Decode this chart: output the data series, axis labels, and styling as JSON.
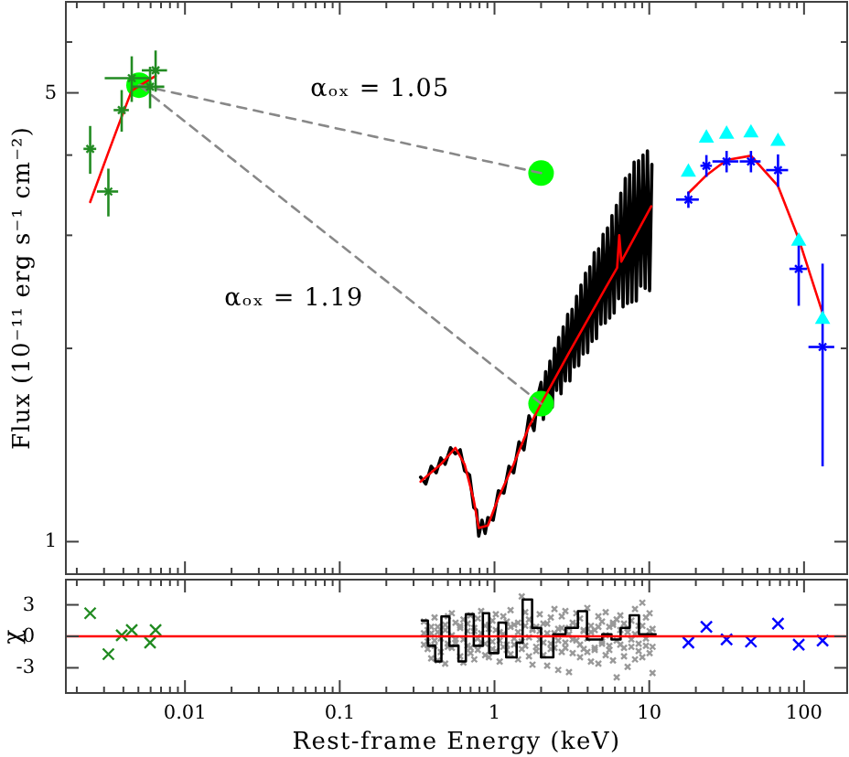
{
  "chart_data": [
    {
      "type": "scatter",
      "ylabel": "Flux (10⁻¹¹ erg s⁻¹ cm⁻²)",
      "log": "xy",
      "xlim": [
        0.0017,
        190
      ],
      "ylim": [
        0.89,
        6.93
      ],
      "tick_labels": "y",
      "xticks": [
        {
          "value": 0.002,
          "label": null
        },
        {
          "value": 0.003,
          "label": null
        },
        {
          "value": 0.004,
          "label": null
        },
        {
          "value": 0.005,
          "label": null
        },
        {
          "value": 0.006,
          "label": null
        },
        {
          "value": 0.007,
          "label": null
        },
        {
          "value": 0.008,
          "label": null
        },
        {
          "value": 0.009,
          "label": null
        },
        0.01,
        {
          "value": 0.02,
          "label": null
        },
        {
          "value": 0.03,
          "label": null
        },
        {
          "value": 0.04,
          "label": null
        },
        {
          "value": 0.05,
          "label": null
        },
        {
          "value": 0.06,
          "label": null
        },
        {
          "value": 0.07,
          "label": null
        },
        {
          "value": 0.08,
          "label": null
        },
        {
          "value": 0.09,
          "label": null
        },
        0.1,
        {
          "value": 0.2,
          "label": null
        },
        {
          "value": 0.3,
          "label": null
        },
        {
          "value": 0.4,
          "label": null
        },
        {
          "value": 0.5,
          "label": null
        },
        {
          "value": 0.6,
          "label": null
        },
        {
          "value": 0.7,
          "label": null
        },
        {
          "value": 0.8,
          "label": null
        },
        {
          "value": 0.9,
          "label": null
        },
        1,
        {
          "value": 2,
          "label": null
        },
        {
          "value": 3,
          "label": null
        },
        {
          "value": 4,
          "label": null
        },
        {
          "value": 5,
          "label": null
        },
        {
          "value": 6,
          "label": null
        },
        {
          "value": 7,
          "label": null
        },
        {
          "value": 8,
          "label": null
        },
        {
          "value": 9,
          "label": null
        },
        10,
        {
          "value": 20,
          "label": null
        },
        {
          "value": 30,
          "label": null
        },
        {
          "value": 40,
          "label": null
        },
        {
          "value": 50,
          "label": null
        },
        {
          "value": 60,
          "label": null
        },
        {
          "value": 70,
          "label": null
        },
        {
          "value": 80,
          "label": null
        },
        {
          "value": 90,
          "label": null
        },
        100
      ],
      "yticks": [
        1,
        {
          "value": 2,
          "label": null
        },
        {
          "value": 3,
          "label": null
        },
        {
          "value": 4,
          "label": null
        },
        5,
        {
          "value": 6,
          "label": null
        }
      ],
      "annotations": [
        "αₒₓ = 1.05",
        "αₒₓ = 1.19"
      ],
      "series": [
        {
          "type": "line",
          "color": "#000000",
          "x": [
            0.333,
            0.36,
            0.39,
            0.42,
            0.45,
            0.48,
            0.52,
            0.559,
            0.6,
            0.641,
            0.69,
            0.735,
            0.765,
            0.791,
            0.83,
            0.87,
            0.906,
            0.98,
            1.06,
            1.15,
            1.24,
            1.33,
            1.44,
            1.55,
            1.67,
            1.8,
            1.9,
            2.0,
            2.07,
            2.14,
            2.21,
            2.28,
            2.36,
            2.44,
            2.52,
            2.6,
            2.69,
            2.78,
            2.87,
            2.97,
            3.07,
            3.17,
            3.28,
            3.39,
            3.5,
            3.62,
            3.74,
            3.87,
            4.0,
            4.13,
            4.27,
            4.41,
            4.56,
            4.71,
            4.87,
            5.03,
            5.2,
            5.37,
            5.55,
            5.74,
            5.93,
            6.13,
            6.34,
            6.55,
            6.77,
            7.0,
            7.23,
            7.47,
            7.72,
            7.98,
            8.25,
            8.53,
            8.81,
            9.11,
            9.41,
            9.73,
            10.05,
            10.4
          ],
          "values": [
            1.26,
            1.23,
            1.31,
            1.28,
            1.35,
            1.32,
            1.4,
            1.37,
            1.39,
            1.29,
            1.27,
            1.13,
            1.12,
            1.02,
            1.08,
            1.03,
            1.09,
            1.08,
            1.2,
            1.19,
            1.31,
            1.28,
            1.43,
            1.39,
            1.57,
            1.49,
            1.68,
            1.77,
            1.55,
            1.84,
            1.61,
            1.91,
            1.62,
            2.0,
            1.72,
            2.08,
            1.7,
            2.16,
            1.78,
            2.26,
            1.78,
            2.3,
            1.87,
            2.41,
            1.88,
            2.51,
            1.96,
            2.62,
            1.97,
            2.68,
            2.05,
            2.82,
            2.07,
            2.86,
            2.18,
            3.01,
            2.19,
            3.08,
            2.23,
            3.22,
            2.27,
            3.34,
            2.39,
            3.49,
            2.32,
            3.68,
            2.35,
            3.73,
            2.36,
            3.9,
            2.37,
            3.92,
            2.5,
            4.0,
            2.48,
            4.06,
            2.46,
            3.87
          ]
        },
        {
          "color": "#00ff00",
          "marker": "circle",
          "x": [
            0.00505,
            2,
            2
          ],
          "values": [
            5.14,
            3.75,
            1.64
          ]
        },
        {
          "type": "line",
          "color": "#ff0000",
          "x": [
            0.00244,
            0.0032,
            0.0039,
            0.00453,
            0.00595,
            0.00646
          ],
          "values": [
            3.38,
            4.04,
            4.59,
            5.04,
            5.25,
            5.31
          ]
        },
        {
          "type": "line",
          "color": "#ff0000",
          "x": [
            0.333,
            0.45,
            0.559,
            0.641,
            0.735,
            0.791,
            0.906,
            1.06,
            1.33,
            1.67,
            2.0,
            3.0,
            5.2,
            6.2,
            6.4,
            6.6,
            10.3
          ],
          "values": [
            1.24,
            1.32,
            1.4,
            1.32,
            1.16,
            1.05,
            1.06,
            1.17,
            1.32,
            1.51,
            1.64,
            1.96,
            2.48,
            2.67,
            3.0,
            2.73,
            3.33
          ]
        },
        {
          "type": "line",
          "color": "#ff0000",
          "x": [
            17.9,
            23.4,
            31.6,
            45.4,
            67.9,
            92.4,
            131.8
          ],
          "values": [
            3.49,
            3.72,
            3.93,
            3.99,
            3.58,
            2.96,
            2.27
          ]
        },
        {
          "type": "line",
          "color": "#888888",
          "line_style": "dashed",
          "x": [
            0.00505,
            2
          ],
          "values": [
            5.14,
            3.75
          ]
        },
        {
          "type": "line",
          "color": "#888888",
          "line_style": "dashed",
          "x": [
            0.00505,
            2
          ],
          "values": [
            5.14,
            1.64
          ]
        },
        {
          "color": "#228b22",
          "marker": "cross",
          "x": [
            0.00244,
            0.0032,
            0.0039,
            0.00453,
            0.00595,
            0.00646
          ],
          "values": [
            4.09,
            3.51,
            4.7,
            5.27,
            5.11,
            5.42
          ],
          "errors": [
            0.35,
            0.3,
            0.35,
            0.43,
            0.38,
            0.4
          ],
          "xerrors": [
            0.00023,
            0.0005,
            0.00044,
            0.0015,
            0.0014,
            0.0012
          ]
        },
        {
          "color": "#0000ff",
          "marker": "cross",
          "x": [
            17.9,
            23.4,
            31.6,
            45.4,
            67.9,
            92.4,
            131.8
          ],
          "values": [
            3.41,
            3.85,
            3.91,
            3.91,
            3.79,
            2.66,
            2.01
          ],
          "errors": [
            0.1,
            0.15,
            0.15,
            0.15,
            0.22,
            0.33,
            0.7
          ],
          "xerrors": [
            3,
            2,
            6,
            7,
            11,
            12,
            25
          ]
        },
        {
          "color": "#00ffff",
          "marker": "triangle",
          "x": [
            17.9,
            23.4,
            31.6,
            45.4,
            67.9,
            92.4,
            131.8
          ],
          "values": [
            3.78,
            4.27,
            4.33,
            4.35,
            4.22,
            2.95,
            2.23
          ]
        }
      ]
    },
    {
      "type": "scatter",
      "xlabel": "Rest-frame Energy (keV)",
      "ylabel": "χ",
      "log": "x",
      "xlim": [
        0.0017,
        190
      ],
      "ylim": [
        -5.4,
        5.4
      ],
      "xticks": [
        {
          "value": 0.002,
          "label": null
        },
        {
          "value": 0.003,
          "label": null
        },
        {
          "value": 0.004,
          "label": null
        },
        {
          "value": 0.005,
          "label": null
        },
        {
          "value": 0.006,
          "label": null
        },
        {
          "value": 0.007,
          "label": null
        },
        {
          "value": 0.008,
          "label": null
        },
        {
          "value": 0.009,
          "label": null
        },
        0.01,
        {
          "value": 0.02,
          "label": null
        },
        {
          "value": 0.03,
          "label": null
        },
        {
          "value": 0.04,
          "label": null
        },
        {
          "value": 0.05,
          "label": null
        },
        {
          "value": 0.06,
          "label": null
        },
        {
          "value": 0.07,
          "label": null
        },
        {
          "value": 0.08,
          "label": null
        },
        {
          "value": 0.09,
          "label": null
        },
        0.1,
        {
          "value": 0.2,
          "label": null
        },
        {
          "value": 0.3,
          "label": null
        },
        {
          "value": 0.4,
          "label": null
        },
        {
          "value": 0.5,
          "label": null
        },
        {
          "value": 0.6,
          "label": null
        },
        {
          "value": 0.7,
          "label": null
        },
        {
          "value": 0.8,
          "label": null
        },
        {
          "value": 0.9,
          "label": null
        },
        1,
        {
          "value": 2,
          "label": null
        },
        {
          "value": 3,
          "label": null
        },
        {
          "value": 4,
          "label": null
        },
        {
          "value": 5,
          "label": null
        },
        {
          "value": 6,
          "label": null
        },
        {
          "value": 7,
          "label": null
        },
        {
          "value": 8,
          "label": null
        },
        {
          "value": 9,
          "label": null
        },
        10,
        {
          "value": 20,
          "label": null
        },
        {
          "value": 30,
          "label": null
        },
        {
          "value": 40,
          "label": null
        },
        {
          "value": 50,
          "label": null
        },
        {
          "value": 60,
          "label": null
        },
        {
          "value": 70,
          "label": null
        },
        {
          "value": 80,
          "label": null
        },
        {
          "value": 90,
          "label": null
        },
        100
      ],
      "yticks": [
        -3,
        0,
        3
      ],
      "ref_lines": [
        {
          "axis": "y",
          "value": 0,
          "color": "#ff0000"
        }
      ],
      "series": [
        {
          "color": "#999999",
          "marker": "cross",
          "x": [
            0.35,
            0.35,
            0.37,
            0.37,
            0.39,
            0.39,
            0.41,
            0.41,
            0.43,
            0.43,
            0.45,
            0.45,
            0.48,
            0.48,
            0.5,
            0.5,
            0.53,
            0.53,
            0.56,
            0.56,
            0.6,
            0.6,
            0.63,
            0.63,
            0.67,
            0.67,
            0.7,
            0.7,
            0.74,
            0.74,
            0.78,
            0.78,
            0.82,
            0.82,
            0.87,
            0.87,
            0.92,
            0.92,
            0.97,
            0.97,
            1.02,
            1.02,
            1.08,
            1.08,
            1.14,
            1.14,
            1.2,
            1.2,
            1.27,
            1.27,
            1.34,
            1.34,
            1.42,
            1.42,
            1.5,
            1.5,
            1.58,
            1.58,
            1.67,
            1.67,
            1.76,
            1.76,
            1.86,
            1.86,
            1.96,
            1.96,
            2.07,
            2.07,
            2.19,
            2.19,
            2.31,
            2.31,
            2.44,
            2.44,
            2.58,
            2.58,
            2.72,
            2.72,
            2.87,
            2.87,
            3.03,
            3.03,
            3.2,
            3.2,
            3.38,
            3.38,
            3.57,
            3.57,
            3.77,
            3.77,
            3.98,
            3.98,
            4.2,
            4.2,
            4.44,
            4.44,
            4.69,
            4.69,
            4.95,
            4.95,
            5.23,
            5.23,
            5.52,
            5.52,
            5.83,
            5.83,
            6.16,
            6.16,
            6.5,
            6.5,
            6.87,
            6.87,
            7.25,
            7.25,
            7.66,
            7.66,
            8.09,
            8.09,
            8.54,
            8.54,
            9.02,
            9.02,
            9.52,
            9.52,
            10.05,
            10.05,
            10.5,
            10.5,
            0.35,
            0.37,
            0.39,
            0.41,
            0.43,
            0.45,
            0.48,
            0.5,
            0.53,
            0.56,
            0.6,
            0.63,
            0.67,
            0.7,
            0.74,
            0.78,
            0.82,
            0.87,
            0.92,
            0.97,
            1.02,
            1.08,
            1.14,
            1.2,
            1.27,
            1.34,
            1.42,
            1.5,
            1.58,
            1.67,
            1.76,
            1.86,
            1.96,
            2.07,
            2.19,
            2.31,
            2.44,
            2.58,
            2.72,
            2.87,
            3.03,
            3.2,
            3.38,
            3.57,
            3.77,
            3.98,
            4.2,
            4.44,
            4.69,
            4.95,
            5.23,
            5.52,
            5.83,
            6.16,
            6.5,
            6.87,
            7.25,
            7.66,
            8.09,
            8.54,
            9.02,
            9.52,
            10.05,
            10.5
          ],
          "values": [
            1.4,
            -0.8,
            -1.2,
            0.6,
            0.3,
            -2.1,
            1.8,
            -0.4,
            -2.3,
            0.9,
            0.2,
            -1.5,
            1.1,
            -2.6,
            -0.7,
            1.9,
            2.2,
            -1.1,
            -0.3,
            1.3,
            0.8,
            -1.9,
            -2.5,
            1.6,
            1.2,
            -0.9,
            -1.6,
            2.0,
            0.5,
            -2.2,
            1.7,
            -1.3,
            -0.6,
            2.4,
            1.0,
            -1.8,
            -2.0,
            0.7,
            1.5,
            -0.5,
            -1.4,
            2.1,
            0.4,
            -2.4,
            1.9,
            -1.0,
            -0.8,
            1.4,
            2.5,
            -1.7,
            -0.2,
            1.1,
            1.3,
            -2.2,
            3.8,
            -1.2,
            -0.9,
            2.3,
            1.6,
            -1.9,
            -2.7,
            0.6,
            0.9,
            -1.4,
            2.1,
            -0.3,
            -1.8,
            1.2,
            0.3,
            -2.8,
            1.8,
            -0.7,
            -1.1,
            2.6,
            0.7,
            -3.2,
            -1.5,
            1.9,
            2.4,
            -0.6,
            -3.4,
            0.8,
            1.3,
            -1.6,
            -0.4,
            2.2,
            1.7,
            -2.0,
            -1.2,
            0.5,
            2.7,
            -1.5,
            -2.4,
            1.0,
            0.6,
            -1.1,
            1.9,
            -2.6,
            -0.7,
            1.4,
            2.3,
            -1.8,
            -1.3,
            0.9,
            1.1,
            -2.3,
            -3.9,
            1.6,
            2.0,
            -0.8,
            -1.9,
            1.2,
            0.4,
            -2.9,
            1.5,
            -1.0,
            -2.2,
            2.6,
            1.0,
            -1.4,
            3.2,
            -2.0,
            -0.9,
            1.8,
            2.2,
            -1.6,
            -3.5,
            0.7,
            0.3,
            -0.5,
            0.9,
            -0.9,
            0.4,
            -0.2,
            0.6,
            -1.0,
            0.1,
            -0.6,
            1.0,
            -0.3,
            0.5,
            -1.1,
            0.8,
            -0.2,
            0.3,
            -0.7,
            1.1,
            -1.2,
            0.6,
            -0.4,
            0.2,
            -1.3,
            0.9,
            -0.8,
            0.4,
            -0.5,
            1.0,
            -0.1,
            0.7,
            -1.0,
            0.5,
            -0.6,
            1.2,
            -1.2,
            0.3,
            -0.4,
            0.8,
            -1.1,
            0.2,
            -0.3,
            1.1,
            -0.8,
            0.6,
            -0.2,
            0.4,
            -1.3,
            0.9,
            -0.5,
            0.1,
            -0.9,
            1.3,
            -0.4,
            0.6,
            -1.1,
            0.8,
            -0.3,
            0.2,
            -0.7,
            1.0,
            -0.2,
            0.5,
            -1.0
          ]
        },
        {
          "type": "step",
          "color": "#000000",
          "x": [
            0.339,
            0.371,
            0.414,
            0.454,
            0.511,
            0.585,
            0.653,
            0.735,
            0.841,
            0.924,
            1.06,
            1.19,
            1.39,
            1.52,
            1.75,
            2.0,
            2.4,
            2.88,
            3.46,
            3.96,
            4.97,
            5.7,
            6.53,
            7.48,
            8.58,
            9.84,
            11.0
          ],
          "values": [
            1.5,
            -0.9,
            -2.4,
            1.9,
            -0.9,
            -2.4,
            2.1,
            -0.9,
            2.2,
            -1.6,
            1.3,
            -2.0,
            -0.6,
            3.5,
            0.8,
            -2.0,
            0.2,
            0.8,
            2.4,
            -0.3,
            0.2,
            -0.3,
            0.8,
            2.0,
            0.2,
            0.2,
            0.2
          ]
        },
        {
          "color": "#228b22",
          "marker": "cross",
          "x": [
            0.00244,
            0.0032,
            0.0039,
            0.00453,
            0.00595,
            0.00646
          ],
          "values": [
            2.2,
            -1.7,
            0.1,
            0.6,
            -0.6,
            0.6
          ]
        },
        {
          "color": "#0000ff",
          "marker": "cross",
          "x": [
            17.9,
            23.4,
            31.6,
            45.4,
            67.9,
            92.4,
            131.8
          ],
          "values": [
            -0.6,
            0.9,
            -0.3,
            -0.5,
            1.2,
            -0.8,
            -0.4
          ]
        }
      ]
    }
  ]
}
